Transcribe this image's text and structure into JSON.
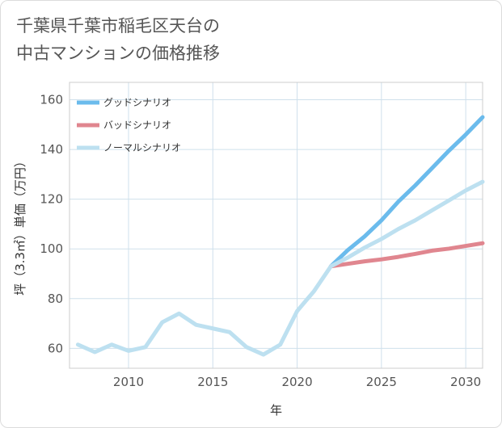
{
  "title_line1": "千葉県千葉市稲毛区天台の",
  "title_line2": "中古マンションの価格推移",
  "chart_data": {
    "type": "line",
    "xlabel": "年",
    "ylabel": "坪（3.3㎡）単価（万円）",
    "xlim": [
      2006.5,
      2031
    ],
    "ylim": [
      52,
      167
    ],
    "x_ticks": [
      2010,
      2015,
      2020,
      2025,
      2030
    ],
    "y_ticks": [
      60,
      80,
      100,
      120,
      140,
      160
    ],
    "grid": true,
    "legend_position": "top-left",
    "series": [
      {
        "name": "グッドシナリオ",
        "color": "#6bbbec",
        "x": [
          2022,
          2023,
          2024,
          2025,
          2026,
          2027,
          2028,
          2029,
          2030,
          2031
        ],
        "y": [
          93,
          99.5,
          105,
          111.5,
          119,
          125.5,
          132.5,
          139.5,
          146,
          153
        ]
      },
      {
        "name": "バッドシナリオ",
        "color": "#e0868f",
        "x": [
          2022,
          2023,
          2024,
          2025,
          2026,
          2027,
          2028,
          2029,
          2030,
          2031
        ],
        "y": [
          93,
          94,
          95,
          95.8,
          96.8,
          98,
          99.3,
          100.1,
          101.2,
          102.3
        ]
      },
      {
        "name": "ノーマルシナリオ",
        "color": "#bde0f0",
        "x": [
          2007,
          2008,
          2009,
          2010,
          2011,
          2012,
          2013,
          2014,
          2015,
          2016,
          2017,
          2018,
          2019,
          2020,
          2021,
          2022,
          2023,
          2024,
          2025,
          2026,
          2027,
          2028,
          2029,
          2030,
          2031
        ],
        "y": [
          61.5,
          58.5,
          61.5,
          59,
          60.5,
          70.5,
          74,
          69.5,
          68,
          66.5,
          60.5,
          57.5,
          61.5,
          75,
          83,
          93,
          96.5,
          100.5,
          104,
          108,
          111.5,
          115.5,
          119.5,
          123.5,
          127
        ]
      }
    ]
  }
}
